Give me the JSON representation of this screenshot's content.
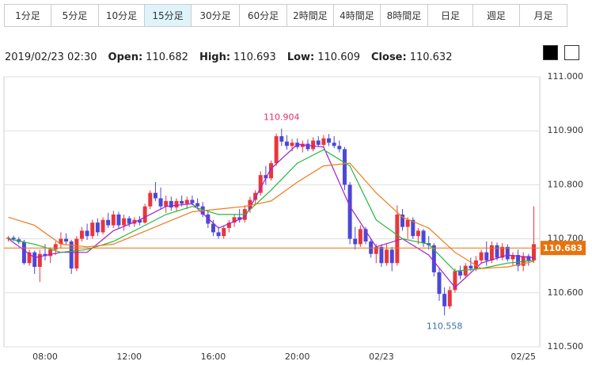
{
  "tabs": [
    "1分足",
    "5分足",
    "10分足",
    "15分足",
    "30分足",
    "60分足",
    "2時間足",
    "4時間足",
    "8時間足",
    "日足",
    "週足",
    "月足"
  ],
  "selected_tab": "15分足",
  "info": {
    "datetime": "2019/02/23 02:30",
    "items": [
      {
        "label": "Open:",
        "value": 110.682
      },
      {
        "label": "High:",
        "value": 110.693
      },
      {
        "label": "Low:",
        "value": 110.609
      },
      {
        "label": "Close:",
        "value": 110.632
      }
    ]
  },
  "chart_data": {
    "type": "candlestick",
    "categories": [
      null,
      null,
      null,
      null,
      null,
      null,
      null,
      "08:00",
      null,
      null,
      null,
      null,
      null,
      null,
      null,
      null,
      null,
      null,
      null,
      null,
      null,
      null,
      null,
      "12:00",
      null,
      null,
      null,
      null,
      null,
      null,
      null,
      null,
      null,
      null,
      null,
      null,
      null,
      null,
      null,
      "16:00",
      null,
      null,
      null,
      null,
      null,
      null,
      null,
      null,
      null,
      null,
      null,
      null,
      null,
      null,
      null,
      "20:00",
      null,
      null,
      null,
      null,
      null,
      null,
      null,
      null,
      null,
      null,
      null,
      null,
      null,
      null,
      null,
      "02/23",
      null,
      null,
      null,
      null,
      null,
      null,
      null,
      null,
      null,
      null,
      null,
      null,
      null,
      null,
      null,
      null,
      null,
      null,
      null,
      null,
      null,
      null,
      null,
      null,
      null,
      null,
      "02/25",
      null,
      null
    ],
    "ohlc": [
      [
        110.7,
        110.705,
        110.695,
        110.702
      ],
      [
        110.702,
        110.706,
        110.696,
        110.699
      ],
      [
        110.699,
        110.703,
        110.69,
        110.694
      ],
      [
        110.694,
        110.698,
        110.652,
        110.655
      ],
      [
        110.655,
        110.68,
        110.65,
        110.675
      ],
      [
        110.675,
        110.678,
        110.635,
        110.648
      ],
      [
        110.648,
        110.68,
        110.62,
        110.672
      ],
      [
        110.672,
        110.69,
        110.66,
        110.668
      ],
      [
        110.668,
        110.684,
        110.655,
        110.68
      ],
      [
        110.68,
        110.695,
        110.67,
        110.69
      ],
      [
        110.69,
        110.712,
        110.682,
        110.7
      ],
      [
        110.7,
        110.71,
        110.69,
        110.695
      ],
      [
        110.695,
        110.698,
        110.635,
        110.645
      ],
      [
        110.645,
        110.705,
        110.64,
        110.7
      ],
      [
        110.7,
        110.722,
        110.695,
        110.715
      ],
      [
        110.715,
        110.728,
        110.698,
        110.705
      ],
      [
        110.705,
        110.735,
        110.7,
        110.73
      ],
      [
        110.73,
        110.738,
        110.705,
        110.712
      ],
      [
        110.712,
        110.74,
        110.708,
        110.735
      ],
      [
        110.735,
        110.748,
        110.72,
        110.725
      ],
      [
        110.725,
        110.752,
        110.72,
        110.745
      ],
      [
        110.745,
        110.75,
        110.718,
        110.725
      ],
      [
        110.725,
        110.745,
        110.715,
        110.738
      ],
      [
        110.738,
        110.742,
        110.722,
        110.728
      ],
      [
        110.728,
        110.74,
        110.722,
        110.735
      ],
      [
        110.735,
        110.742,
        110.725,
        110.73
      ],
      [
        110.73,
        110.765,
        110.728,
        110.76
      ],
      [
        110.76,
        110.79,
        110.755,
        110.785
      ],
      [
        110.785,
        110.805,
        110.77,
        110.775
      ],
      [
        110.775,
        110.795,
        110.755,
        110.76
      ],
      [
        110.76,
        110.78,
        110.748,
        110.77
      ],
      [
        110.77,
        110.778,
        110.752,
        110.758
      ],
      [
        110.758,
        110.775,
        110.75,
        110.77
      ],
      [
        110.77,
        110.78,
        110.76,
        110.765
      ],
      [
        110.765,
        110.778,
        110.755,
        110.772
      ],
      [
        110.772,
        110.78,
        110.762,
        110.766
      ],
      [
        110.766,
        110.775,
        110.755,
        110.76
      ],
      [
        110.76,
        110.768,
        110.74,
        110.745
      ],
      [
        110.745,
        110.752,
        110.72,
        110.728
      ],
      [
        110.728,
        110.735,
        110.705,
        110.712
      ],
      [
        110.712,
        110.722,
        110.7,
        110.705
      ],
      [
        110.705,
        110.725,
        110.7,
        110.72
      ],
      [
        110.72,
        110.735,
        110.712,
        110.73
      ],
      [
        110.73,
        110.745,
        110.722,
        110.74
      ],
      [
        110.74,
        110.755,
        110.73,
        110.735
      ],
      [
        110.735,
        110.762,
        110.73,
        110.755
      ],
      [
        110.755,
        110.778,
        110.748,
        110.772
      ],
      [
        110.772,
        110.79,
        110.765,
        110.785
      ],
      [
        110.785,
        110.825,
        110.78,
        110.818
      ],
      [
        110.818,
        110.835,
        110.8,
        110.812
      ],
      [
        110.812,
        110.845,
        110.808,
        110.84
      ],
      [
        110.84,
        110.895,
        110.835,
        110.89
      ],
      [
        110.89,
        110.904,
        110.872,
        110.88
      ],
      [
        110.88,
        110.892,
        110.865,
        110.872
      ],
      [
        110.872,
        110.885,
        110.862,
        110.878
      ],
      [
        110.878,
        110.886,
        110.866,
        110.87
      ],
      [
        110.87,
        110.882,
        110.86,
        110.876
      ],
      [
        110.876,
        110.884,
        110.862,
        110.866
      ],
      [
        110.866,
        110.888,
        110.862,
        110.882
      ],
      [
        110.882,
        110.89,
        110.87,
        110.874
      ],
      [
        110.874,
        110.892,
        110.868,
        110.886
      ],
      [
        110.886,
        110.894,
        110.872,
        110.878
      ],
      [
        110.878,
        110.89,
        110.868,
        110.872
      ],
      [
        110.872,
        110.882,
        110.86,
        110.866
      ],
      [
        110.866,
        110.87,
        110.79,
        110.8
      ],
      [
        110.8,
        110.805,
        110.69,
        110.7
      ],
      [
        110.7,
        110.722,
        110.68,
        110.69
      ],
      [
        110.69,
        110.725,
        110.685,
        110.718
      ],
      [
        110.718,
        110.722,
        110.69,
        110.695
      ],
      [
        110.695,
        110.7,
        110.665,
        110.672
      ],
      [
        110.672,
        110.69,
        110.655,
        110.685
      ],
      [
        110.685,
        110.69,
        110.648,
        110.655
      ],
      [
        110.655,
        110.69,
        110.65,
        110.68
      ],
      [
        110.68,
        110.685,
        110.64,
        110.655
      ],
      [
        110.655,
        110.762,
        110.65,
        110.745
      ],
      [
        110.745,
        110.755,
        110.715,
        110.722
      ],
      [
        110.722,
        110.74,
        110.7,
        110.735
      ],
      [
        110.735,
        110.74,
        110.7,
        110.705
      ],
      [
        110.705,
        110.72,
        110.69,
        110.715
      ],
      [
        110.715,
        110.718,
        110.685,
        110.692
      ],
      [
        110.692,
        110.705,
        110.68,
        110.688
      ],
      [
        110.688,
        110.692,
        110.63,
        110.638
      ],
      [
        110.638,
        110.645,
        110.585,
        110.598
      ],
      [
        110.598,
        110.61,
        110.558,
        110.575
      ],
      [
        110.575,
        110.612,
        110.57,
        110.605
      ],
      [
        110.605,
        110.645,
        110.6,
        110.64
      ],
      [
        110.64,
        110.65,
        110.625,
        110.632
      ],
      [
        110.632,
        110.655,
        110.628,
        110.65
      ],
      [
        110.65,
        110.665,
        110.64,
        110.645
      ],
      [
        110.645,
        110.668,
        110.64,
        110.66
      ],
      [
        110.66,
        110.68,
        110.655,
        110.675
      ],
      [
        110.675,
        110.695,
        110.65,
        110.66
      ],
      [
        110.66,
        110.695,
        110.655,
        110.688
      ],
      [
        110.688,
        110.693,
        110.66,
        110.665
      ],
      [
        110.665,
        110.692,
        110.66,
        110.685
      ],
      [
        110.685,
        110.69,
        110.658,
        110.662
      ],
      [
        110.662,
        110.675,
        110.65,
        110.67
      ],
      [
        110.67,
        110.68,
        110.64,
        110.65
      ],
      [
        110.65,
        110.675,
        110.64,
        110.668
      ],
      [
        110.668,
        110.672,
        110.65,
        110.66
      ],
      [
        110.66,
        110.76,
        110.655,
        110.69
      ]
    ],
    "up_color": "#e8363c",
    "down_color": "#4b48d6",
    "moving_averages": [
      {
        "color": "#a020d0",
        "x": [
          0,
          5,
          10,
          15,
          20,
          25,
          30,
          35,
          40,
          45,
          50,
          55,
          60,
          65,
          70,
          75,
          80,
          85,
          90,
          95,
          100
        ],
        "values": [
          110.7,
          110.665,
          110.675,
          110.675,
          110.715,
          110.735,
          110.76,
          110.765,
          110.72,
          110.74,
          110.83,
          110.875,
          110.87,
          110.76,
          110.685,
          110.7,
          110.67,
          110.61,
          110.655,
          110.67,
          110.665
        ]
      },
      {
        "color": "#22b83a",
        "x": [
          0,
          5,
          10,
          15,
          20,
          25,
          30,
          35,
          40,
          45,
          50,
          55,
          60,
          65,
          70,
          75,
          80,
          85,
          90,
          95,
          100
        ],
        "values": [
          110.7,
          110.69,
          110.675,
          110.68,
          110.695,
          110.72,
          110.745,
          110.76,
          110.745,
          110.745,
          110.79,
          110.84,
          110.865,
          110.835,
          110.735,
          110.7,
          110.69,
          110.64,
          110.645,
          110.655,
          110.66
        ]
      },
      {
        "color": "#f07a1a",
        "x": [
          0,
          5,
          10,
          15,
          20,
          25,
          30,
          35,
          40,
          45,
          50,
          55,
          60,
          65,
          70,
          75,
          80,
          85,
          90,
          95,
          100
        ],
        "values": [
          110.74,
          110.725,
          110.69,
          110.685,
          110.69,
          110.71,
          110.73,
          110.75,
          110.755,
          110.76,
          110.77,
          110.805,
          110.835,
          110.84,
          110.785,
          110.74,
          110.72,
          110.675,
          110.645,
          110.648,
          110.658
        ]
      }
    ],
    "annotations": [
      {
        "x": 52,
        "value": 110.904,
        "color": "#e0306a",
        "position": "above"
      },
      {
        "x": 83,
        "value": 110.558,
        "color": "#3a6fb0",
        "position": "below"
      }
    ],
    "current_price": {
      "value": 110.683,
      "color": "#e8730c"
    },
    "ylim": [
      110.5,
      111.0
    ],
    "yticks": [
      {
        "value": 110.5,
        "label": "110.500"
      },
      {
        "value": 110.6,
        "label": "110.600"
      },
      {
        "value": 110.7,
        "label": "110.700"
      },
      {
        "value": 110.8,
        "label": "110.800"
      },
      {
        "value": 110.9,
        "label": "110.900"
      },
      {
        "value": 111.0,
        "label": "111.000"
      }
    ],
    "grid": true
  }
}
